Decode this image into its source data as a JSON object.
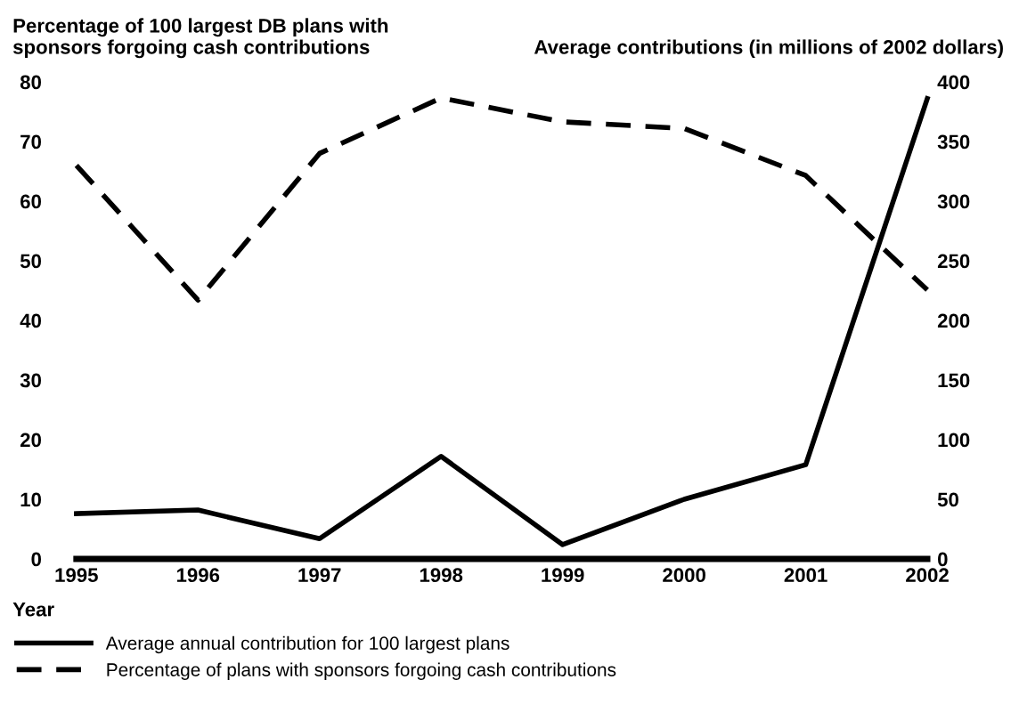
{
  "chart_data": {
    "type": "line",
    "x": [
      1995,
      1996,
      1997,
      1998,
      1999,
      2000,
      2001,
      2002
    ],
    "xlabel": "Year",
    "ylabel": "Percentage of 100 largest DB plans with\nsponsors forgoing cash contributions",
    "y2label": "Average contributions (in millions of 2002 dollars)",
    "xlim": [
      1995,
      2002
    ],
    "xticks": [
      1995,
      1996,
      1997,
      1998,
      1999,
      2000,
      2001,
      2002
    ],
    "ylim": [
      0,
      80
    ],
    "yticks": [
      0,
      10,
      20,
      30,
      40,
      50,
      60,
      70,
      80
    ],
    "y2lim": [
      0,
      400
    ],
    "y2ticks": [
      0,
      50,
      100,
      150,
      200,
      250,
      300,
      350,
      400
    ],
    "series": [
      {
        "name": "Average annual contribution for 100 largest plans",
        "color": "#000000",
        "axis": "y2",
        "line_style": "solid",
        "values": [
          38,
          41,
          17,
          86,
          12,
          50,
          79,
          386
        ]
      },
      {
        "name": "Percentage of plans with sponsors forgoing cash contributions",
        "color": "#000000",
        "axis": "y",
        "line_style": "dashed",
        "values": [
          66,
          43.4,
          68,
          77.3,
          73.3,
          72.2,
          64.3,
          45.1
        ]
      }
    ],
    "grid": false,
    "legend": "bottom",
    "marker": "none"
  }
}
